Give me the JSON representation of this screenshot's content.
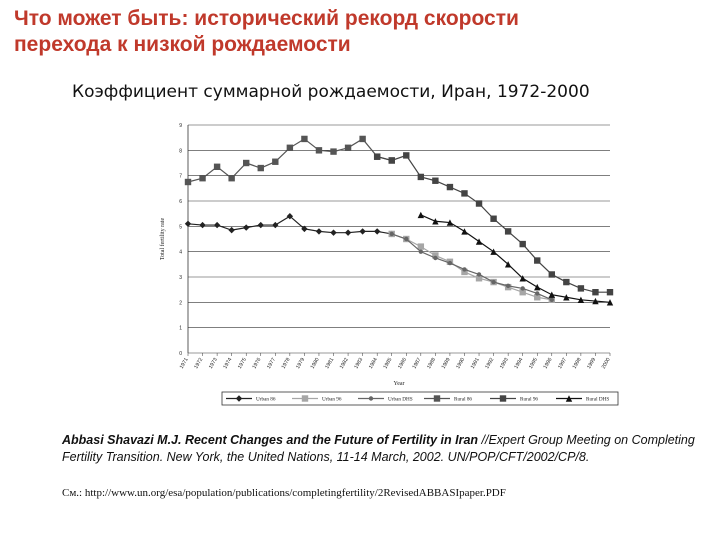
{
  "slide": {
    "title_line1": "Что может быть: исторический рекорд скорости",
    "title_line2": "перехода к низкой рождаемости",
    "chart_heading": "Коэффициент суммарной рождаемости, Иран, 1972-2000"
  },
  "citation": {
    "authors": "Abbasi Shavazi M.J. Recent Changes and the Future of Fertility in Iran",
    "rest": " //Expert Group Meeting on Completing Fertility Transition. New York, the United Nations, 11-14 March, 2002. UN/POP/CFT/2002/CP/8.",
    "url": "См.: http://www.un.org/esa/population/publications/completingfertility/2RevisedABBASIpaper.PDF"
  },
  "chart_data": {
    "type": "line",
    "xlabel": "Year",
    "ylabel": "Total fertility rate",
    "ylim": [
      0,
      9
    ],
    "yticks": [
      0,
      1,
      2,
      3,
      4,
      5,
      6,
      7,
      8,
      9
    ],
    "x_tick_labels": [
      "1971",
      "1972",
      "1973",
      "1974",
      "1975",
      "1976",
      "1977",
      "1978",
      "1979",
      "1980",
      "1981",
      "1982",
      "1983",
      "1984",
      "1985",
      "1986",
      "1987",
      "1988",
      "1989",
      "1990",
      "1991",
      "1992",
      "1993",
      "1994",
      "1995",
      "1996",
      "1997",
      "1998",
      "1999",
      "2000"
    ],
    "legend_position": "bottom",
    "grid": true,
    "series": [
      {
        "name": "Urban 86",
        "color": "#222222",
        "marker": "diamond",
        "x": [
          1971,
          1972,
          1973,
          1974,
          1975,
          1976,
          1977,
          1978,
          1979,
          1980,
          1981,
          1982,
          1983,
          1984,
          1985
        ],
        "y": [
          5.1,
          5.05,
          5.05,
          4.85,
          4.95,
          5.05,
          5.05,
          5.4,
          4.9,
          4.8,
          4.75,
          4.75,
          4.8,
          4.8,
          4.7
        ]
      },
      {
        "name": "Urban 96",
        "color": "#a6a6a6",
        "marker": "square",
        "x": [
          1985,
          1986,
          1987,
          1988,
          1989,
          1990,
          1991,
          1992,
          1993,
          1994,
          1995,
          1996
        ],
        "y": [
          4.7,
          4.5,
          4.2,
          3.85,
          3.6,
          3.2,
          2.95,
          2.8,
          2.6,
          2.4,
          2.2,
          2.1
        ]
      },
      {
        "name": "Urban DHS",
        "color": "#666666",
        "marker": "circle",
        "x": [
          1985,
          1986,
          1987,
          1988,
          1989,
          1990,
          1991,
          1992,
          1993,
          1994,
          1995,
          1996
        ],
        "y": [
          4.7,
          4.5,
          4.0,
          3.75,
          3.55,
          3.3,
          3.1,
          2.8,
          2.65,
          2.55,
          2.35,
          2.1
        ]
      },
      {
        "name": "Rural 86",
        "color": "#555555",
        "marker": "square",
        "x": [
          1971,
          1972,
          1973,
          1974,
          1975,
          1976,
          1977,
          1978,
          1979,
          1980,
          1981,
          1982,
          1983,
          1984,
          1985
        ],
        "y": [
          6.75,
          6.9,
          7.35,
          6.9,
          7.5,
          7.3,
          7.55,
          8.1,
          8.45,
          8.0,
          7.95,
          8.1,
          8.45,
          7.75,
          7.6
        ]
      },
      {
        "name": "Rural 96",
        "color": "#444444",
        "marker": "square",
        "x": [
          1984,
          1985,
          1986,
          1987,
          1988,
          1989,
          1990,
          1991,
          1992,
          1993,
          1994,
          1995,
          1996,
          1997,
          1998,
          1999,
          2000
        ],
        "y": [
          7.75,
          7.6,
          7.8,
          6.95,
          6.8,
          6.55,
          6.3,
          5.9,
          5.3,
          4.8,
          4.3,
          3.65,
          3.1,
          2.8,
          2.55,
          2.4,
          2.4
        ]
      },
      {
        "name": "Rural DHS",
        "color": "#111111",
        "marker": "triangle",
        "x": [
          1987,
          1988,
          1989,
          1990,
          1991,
          1992,
          1993,
          1994,
          1995,
          1996,
          1997,
          1998,
          1999,
          2000
        ],
        "y": [
          5.45,
          5.2,
          5.15,
          4.8,
          4.4,
          4.0,
          3.5,
          2.95,
          2.6,
          2.3,
          2.2,
          2.1,
          2.05,
          2.0
        ]
      }
    ]
  }
}
